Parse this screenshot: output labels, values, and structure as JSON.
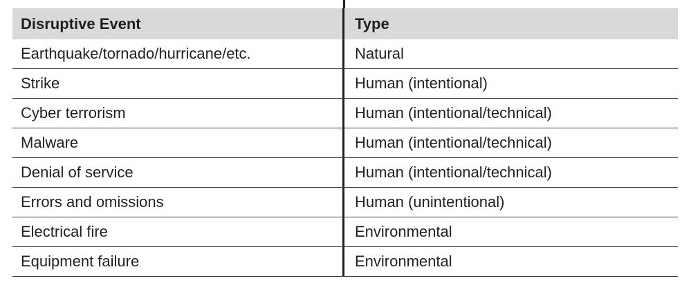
{
  "table": {
    "headers": [
      "Disruptive Event",
      "Type"
    ],
    "rows": [
      [
        "Earthquake/tornado/hurricane/etc.",
        "Natural"
      ],
      [
        "Strike",
        "Human (intentional)"
      ],
      [
        "Cyber terrorism",
        "Human (intentional/technical)"
      ],
      [
        "Malware",
        "Human (intentional/technical)"
      ],
      [
        "Denial of service",
        "Human (intentional/technical)"
      ],
      [
        "Errors and omissions",
        "Human (unintentional)"
      ],
      [
        "Electrical fire",
        "Environmental"
      ],
      [
        "Equipment failure",
        "Environmental"
      ]
    ]
  }
}
